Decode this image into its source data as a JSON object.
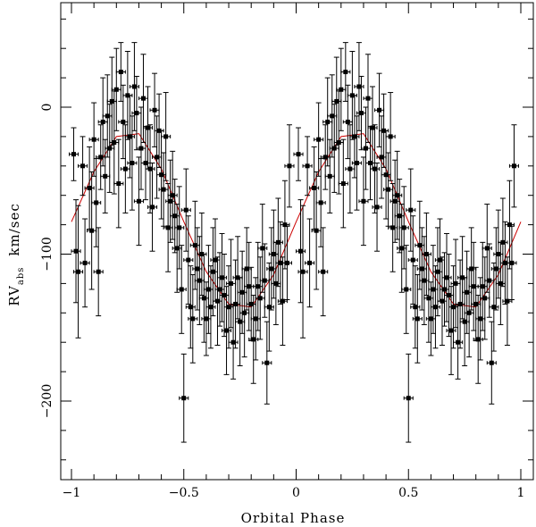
{
  "chart_data": {
    "type": "scatter",
    "title": "",
    "xlabel": "Orbital Phase",
    "ylabel": {
      "main": "RV",
      "subscript": "abs",
      "unit": "km/sec"
    },
    "xlim": [
      -1.05,
      1.05
    ],
    "ylim": [
      -250,
      60
    ],
    "x_ticks": [
      -1,
      -0.5,
      0,
      0.5,
      1
    ],
    "x_tick_labels": [
      "−1",
      "−0.5",
      "0",
      "0.5",
      "1"
    ],
    "y_ticks": [
      0,
      -100,
      -200
    ],
    "y_tick_labels": [
      "0",
      "−100",
      "−200"
    ],
    "grid": false,
    "legend": "none",
    "colors": {
      "points": "#000000",
      "errorbars": "#000000",
      "fit": "#cc0000"
    },
    "fit_curve": {
      "name": "",
      "x": [
        -1.0,
        -0.9,
        -0.8,
        -0.7,
        -0.6,
        -0.5,
        -0.4,
        -0.3,
        -0.2,
        -0.1,
        0.0,
        0.1,
        0.2,
        0.3,
        0.4,
        0.5,
        0.6,
        0.7,
        0.8,
        0.9,
        1.0
      ],
      "y": [
        -78,
        -44,
        -20,
        -18,
        -42,
        -78,
        -112,
        -134,
        -136,
        -114,
        -78,
        -44,
        -20,
        -18,
        -42,
        -78,
        -112,
        -134,
        -136,
        -114,
        -78
      ]
    },
    "series": [
      {
        "name": "",
        "x_error": 0.02,
        "points": [
          [
            -0.99,
            -32,
            18
          ],
          [
            -0.98,
            -98,
            35
          ],
          [
            -0.97,
            -112,
            45
          ],
          [
            -0.95,
            -40,
            20
          ],
          [
            -0.94,
            -106,
            30
          ],
          [
            -0.92,
            -55,
            28
          ],
          [
            -0.91,
            -84,
            40
          ],
          [
            -0.9,
            -22,
            25
          ],
          [
            -0.89,
            -65,
            30
          ],
          [
            -0.88,
            -112,
            30
          ],
          [
            -0.87,
            -34,
            22
          ],
          [
            -0.86,
            -10,
            30
          ],
          [
            -0.85,
            -47,
            25
          ],
          [
            -0.84,
            -6,
            28
          ],
          [
            -0.83,
            -28,
            30
          ],
          [
            -0.82,
            4,
            30
          ],
          [
            -0.81,
            -24,
            35
          ],
          [
            -0.8,
            12,
            28
          ],
          [
            -0.79,
            -52,
            30
          ],
          [
            -0.78,
            24,
            20
          ],
          [
            -0.77,
            -10,
            25
          ],
          [
            -0.76,
            -42,
            30
          ],
          [
            -0.75,
            8,
            30
          ],
          [
            -0.74,
            -20,
            28
          ],
          [
            -0.73,
            -38,
            32
          ],
          [
            -0.72,
            14,
            30
          ],
          [
            -0.71,
            -4,
            25
          ],
          [
            -0.7,
            -64,
            30
          ],
          [
            -0.69,
            -28,
            28
          ],
          [
            -0.68,
            6,
            30
          ],
          [
            -0.67,
            -38,
            25
          ],
          [
            -0.66,
            -14,
            28
          ],
          [
            -0.65,
            -42,
            30
          ],
          [
            -0.64,
            -68,
            30
          ],
          [
            -0.63,
            -2,
            25
          ],
          [
            -0.62,
            -34,
            28
          ],
          [
            -0.61,
            -16,
            25
          ],
          [
            -0.6,
            -46,
            30
          ],
          [
            -0.59,
            -56,
            25
          ],
          [
            -0.58,
            -20,
            30
          ],
          [
            -0.57,
            -82,
            30
          ],
          [
            -0.56,
            -64,
            28
          ],
          [
            -0.55,
            -60,
            30
          ],
          [
            -0.54,
            -74,
            25
          ],
          [
            -0.53,
            -96,
            30
          ],
          [
            -0.52,
            -82,
            28
          ],
          [
            -0.51,
            -124,
            30
          ],
          [
            -0.5,
            -198,
            30
          ],
          [
            -0.49,
            -70,
            28
          ],
          [
            -0.48,
            -104,
            30
          ],
          [
            -0.47,
            -136,
            28
          ],
          [
            -0.46,
            -144,
            30
          ],
          [
            -0.45,
            -94,
            30
          ],
          [
            -0.44,
            -110,
            28
          ],
          [
            -0.43,
            -118,
            30
          ],
          [
            -0.42,
            -100,
            28
          ],
          [
            -0.41,
            -130,
            30
          ],
          [
            -0.4,
            -144,
            25
          ],
          [
            -0.39,
            -124,
            30
          ],
          [
            -0.38,
            -136,
            28
          ],
          [
            -0.37,
            -112,
            30
          ],
          [
            -0.36,
            -104,
            28
          ],
          [
            -0.35,
            -132,
            30
          ],
          [
            -0.34,
            -124,
            25
          ],
          [
            -0.33,
            -116,
            30
          ],
          [
            -0.32,
            -128,
            28
          ],
          [
            -0.31,
            -152,
            30
          ],
          [
            -0.3,
            -136,
            28
          ],
          [
            -0.29,
            -120,
            30
          ],
          [
            -0.28,
            -160,
            25
          ],
          [
            -0.27,
            -134,
            30
          ],
          [
            -0.26,
            -116,
            28
          ],
          [
            -0.25,
            -146,
            30
          ],
          [
            -0.24,
            -126,
            28
          ],
          [
            -0.23,
            -140,
            30
          ],
          [
            -0.22,
            -110,
            28
          ],
          [
            -0.21,
            -122,
            30
          ],
          [
            -0.2,
            -134,
            25
          ],
          [
            -0.19,
            -158,
            30
          ],
          [
            -0.18,
            -144,
            28
          ],
          [
            -0.17,
            -122,
            30
          ],
          [
            -0.16,
            -130,
            28
          ],
          [
            -0.15,
            -96,
            30
          ],
          [
            -0.14,
            -118,
            25
          ],
          [
            -0.13,
            -174,
            28
          ],
          [
            -0.12,
            -136,
            30
          ],
          [
            -0.11,
            -110,
            28
          ],
          [
            -0.1,
            -100,
            30
          ],
          [
            -0.09,
            -120,
            28
          ],
          [
            -0.08,
            -92,
            30
          ],
          [
            -0.07,
            -106,
            28
          ],
          [
            -0.06,
            -132,
            30
          ],
          [
            -0.05,
            -80,
            30
          ],
          [
            -0.04,
            -106,
            25
          ],
          [
            -0.03,
            -40,
            28
          ]
        ]
      }
    ]
  }
}
